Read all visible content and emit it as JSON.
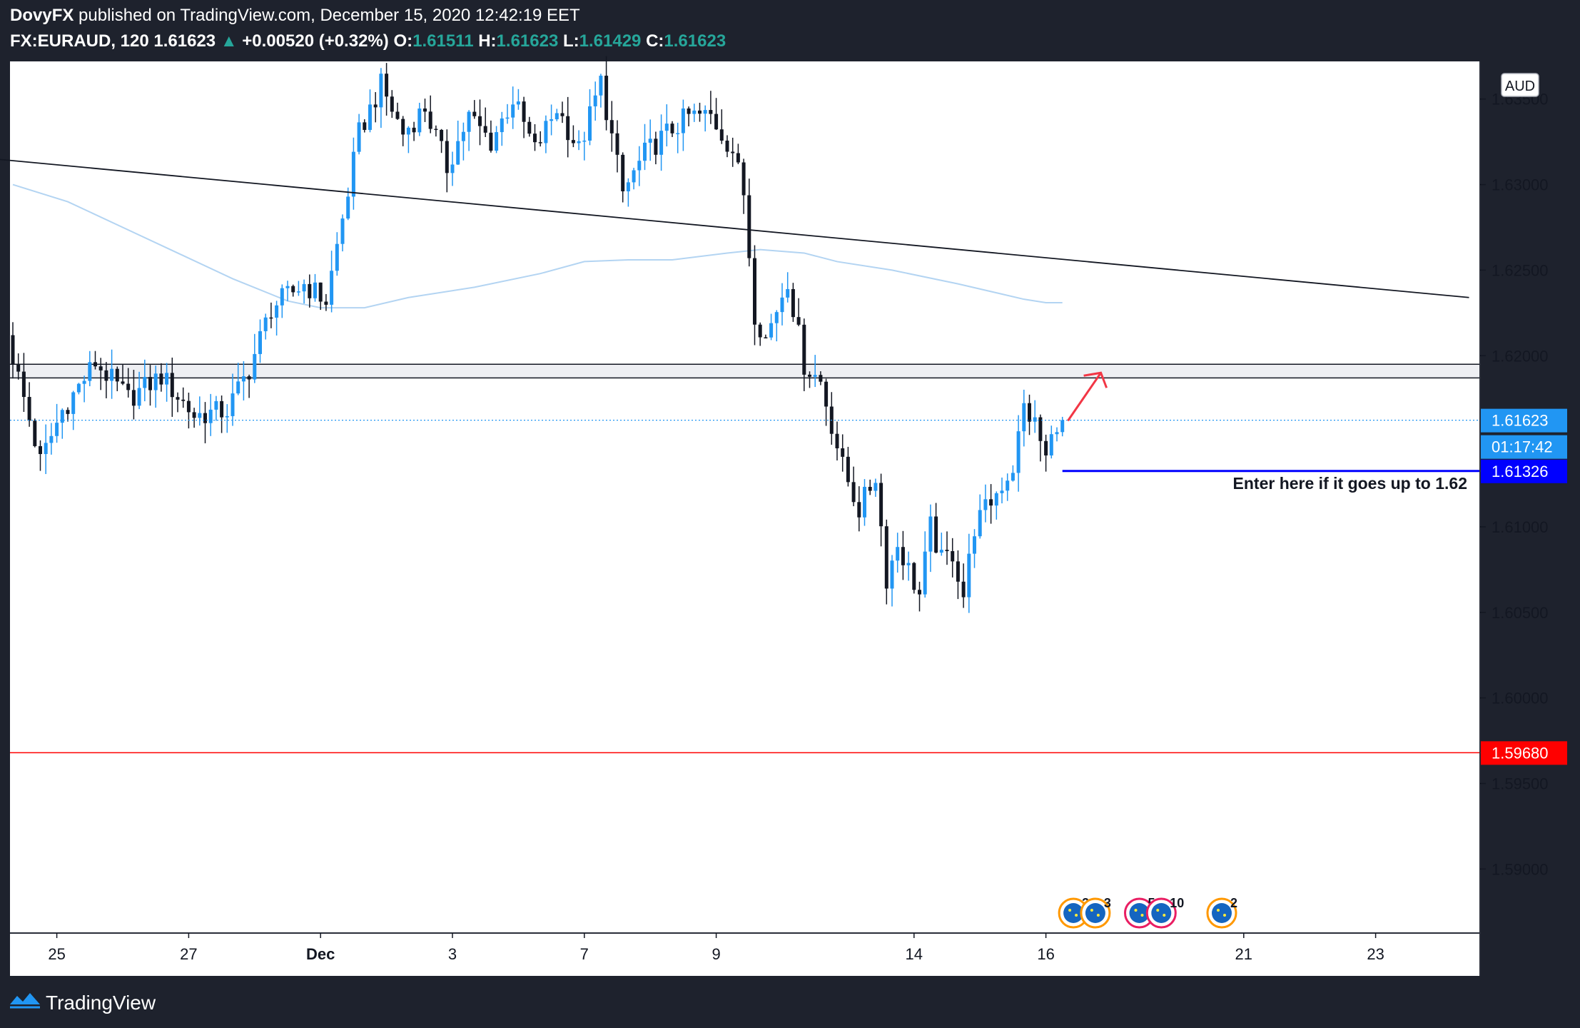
{
  "header": {
    "author": "DovyFX",
    "published_text": "published on TradingView.com, December 15, 2020 12:42:19 EET",
    "symbol": "FX:EURAUD, 120",
    "last_price": "1.61623",
    "change": "+0.00520 (+0.32%)",
    "open_label": "O:",
    "open": "1.61511",
    "high_label": "H:",
    "high": "1.61623",
    "low_label": "L:",
    "low": "1.61429",
    "close_label": "C:",
    "close": "1.61623"
  },
  "footer": {
    "brand": "TradingView"
  },
  "colors": {
    "up": "#2196f3",
    "down": "#131722",
    "ma": "#b3d4f2",
    "price_label_bg": "#2196f3",
    "entry_line": "#0000ff",
    "stop_line": "#ff0000"
  },
  "chart_data": {
    "type": "candlestick",
    "symbol": "FX:EURAUD",
    "timeframe": "120",
    "currency_label": "AUD",
    "ylim": [
      1.5863,
      1.6372
    ],
    "y_ticks": [
      "1.63500",
      "1.63000",
      "1.62500",
      "1.62000",
      "1.61000",
      "1.60500",
      "1.60000",
      "1.59500",
      "1.59000"
    ],
    "x_ticks": [
      {
        "label": "25",
        "bar": 8
      },
      {
        "label": "27",
        "bar": 32
      },
      {
        "label": "Dec",
        "bar": 56
      },
      {
        "label": "3",
        "bar": 80
      },
      {
        "label": "7",
        "bar": 104
      },
      {
        "label": "9",
        "bar": 128
      },
      {
        "label": "14",
        "bar": 164
      },
      {
        "label": "16",
        "bar": 188
      },
      {
        "label": "21",
        "bar": 224
      },
      {
        "label": "23",
        "bar": 248
      }
    ],
    "anchors": [
      [
        0,
        1.6212
      ],
      [
        6,
        1.6138
      ],
      [
        10,
        1.6168
      ],
      [
        16,
        1.6196
      ],
      [
        22,
        1.6175
      ],
      [
        28,
        1.6188
      ],
      [
        34,
        1.6165
      ],
      [
        40,
        1.6168
      ],
      [
        44,
        1.6192
      ],
      [
        48,
        1.6228
      ],
      [
        54,
        1.6242
      ],
      [
        58,
        1.6232
      ],
      [
        62,
        1.6296
      ],
      [
        64,
        1.633
      ],
      [
        68,
        1.6358
      ],
      [
        72,
        1.633
      ],
      [
        76,
        1.6345
      ],
      [
        80,
        1.631
      ],
      [
        84,
        1.634
      ],
      [
        88,
        1.6325
      ],
      [
        92,
        1.635
      ],
      [
        96,
        1.632
      ],
      [
        100,
        1.6345
      ],
      [
        104,
        1.632
      ],
      [
        108,
        1.636
      ],
      [
        112,
        1.6295
      ],
      [
        116,
        1.6318
      ],
      [
        120,
        1.633
      ],
      [
        124,
        1.634
      ],
      [
        128,
        1.634
      ],
      [
        132,
        1.632
      ],
      [
        134,
        1.6295
      ],
      [
        136,
        1.6225
      ],
      [
        138,
        1.621
      ],
      [
        142,
        1.6245
      ],
      [
        145,
        1.6195
      ],
      [
        148,
        1.6185
      ],
      [
        150,
        1.616
      ],
      [
        152,
        1.6135
      ],
      [
        155,
        1.611
      ],
      [
        158,
        1.613
      ],
      [
        160,
        1.607
      ],
      [
        162,
        1.609
      ],
      [
        164,
        1.6075
      ],
      [
        166,
        1.606
      ],
      [
        168,
        1.61
      ],
      [
        170,
        1.608
      ],
      [
        172,
        1.6085
      ],
      [
        174,
        1.606
      ],
      [
        176,
        1.61
      ],
      [
        180,
        1.612
      ],
      [
        183,
        1.6135
      ],
      [
        185,
        1.617
      ],
      [
        187,
        1.616
      ],
      [
        189,
        1.614
      ],
      [
        191,
        1.6162
      ]
    ],
    "moving_average": [
      [
        0,
        1.63
      ],
      [
        10,
        1.629
      ],
      [
        20,
        1.6275
      ],
      [
        30,
        1.626
      ],
      [
        40,
        1.6245
      ],
      [
        50,
        1.6232
      ],
      [
        56,
        1.6228
      ],
      [
        64,
        1.6228
      ],
      [
        72,
        1.6234
      ],
      [
        84,
        1.624
      ],
      [
        96,
        1.6248
      ],
      [
        104,
        1.6255
      ],
      [
        112,
        1.6256
      ],
      [
        120,
        1.6256
      ],
      [
        130,
        1.626
      ],
      [
        136,
        1.6262
      ],
      [
        144,
        1.626
      ],
      [
        150,
        1.6255
      ],
      [
        160,
        1.625
      ],
      [
        172,
        1.6242
      ],
      [
        184,
        1.6233
      ],
      [
        188,
        1.6231
      ],
      [
        191,
        1.6231
      ]
    ],
    "trendline": {
      "from": [
        -10,
        1.6317
      ],
      "to": [
        265,
        1.6234
      ]
    },
    "zone": {
      "top": 1.6195,
      "bottom": 1.6187
    },
    "current_price": {
      "value": 1.61623,
      "label": "1.61623",
      "countdown": "01:17:42"
    },
    "entry_line": {
      "value": 1.61326,
      "label": "1.61326",
      "from_bar": 191
    },
    "stop_line": {
      "value": 1.5968,
      "label": "1.59680"
    },
    "annotation": "Enter here if it goes up to 1.62",
    "arrow": {
      "from": [
        192,
        1.6162
      ],
      "to": [
        198,
        1.619
      ]
    },
    "events": [
      {
        "bar": 193,
        "count": "3"
      },
      {
        "bar": 197,
        "count": "3"
      },
      {
        "bar": 205,
        "count": "5"
      },
      {
        "bar": 209,
        "count": "10"
      },
      {
        "bar": 220,
        "count": "2"
      }
    ]
  }
}
